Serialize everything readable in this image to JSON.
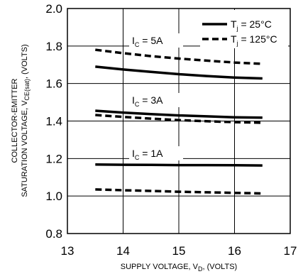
{
  "chart_data": {
    "type": "line",
    "xlabel": {
      "main": "SUPPLY VOLTAGE, V",
      "sub": "D",
      "tail": ", (VOLTS)"
    },
    "ylabel": {
      "line1": "COLLECTOR-EMITTER",
      "line2_main": "SATURATION VOLTAGE, V",
      "line2_sub": "CE(sat)",
      "line2_tail": ", (VOLTS)"
    },
    "xlim": [
      13,
      17
    ],
    "ylim": [
      0.8,
      2.0
    ],
    "xticks": [
      "13",
      "14",
      "15",
      "16",
      "17"
    ],
    "yticks": [
      "0.8",
      "1.0",
      "1.2",
      "1.4",
      "1.6",
      "1.8",
      "2.0"
    ],
    "grid": true,
    "legend_position": "top-right",
    "legend": [
      {
        "main": "T",
        "sub": "j",
        "tail": " = 25°C",
        "style": "solid"
      },
      {
        "main": "T",
        "sub": "j",
        "tail": " = 125°C",
        "style": "dashed"
      }
    ],
    "annotations": [
      {
        "main": "I",
        "sub": "C",
        "tail": " = 5A"
      },
      {
        "main": "I",
        "sub": "C",
        "tail": " = 3A"
      },
      {
        "main": "I",
        "sub": "C",
        "tail": " = 1A"
      }
    ],
    "series": [
      {
        "style": "solid",
        "current": "5A",
        "x": [
          13.5,
          14,
          14.5,
          15,
          15.5,
          16,
          16.5
        ],
        "y": [
          1.69,
          1.675,
          1.662,
          1.65,
          1.64,
          1.632,
          1.627
        ]
      },
      {
        "style": "dashed",
        "current": "5A",
        "x": [
          13.5,
          14,
          14.5,
          15,
          15.5,
          16,
          16.5
        ],
        "y": [
          1.78,
          1.762,
          1.746,
          1.733,
          1.722,
          1.712,
          1.705
        ]
      },
      {
        "style": "solid",
        "current": "3A",
        "x": [
          13.5,
          14,
          14.5,
          15,
          15.5,
          16,
          16.5
        ],
        "y": [
          1.455,
          1.445,
          1.437,
          1.43,
          1.425,
          1.42,
          1.418
        ]
      },
      {
        "style": "dashed",
        "current": "3A",
        "x": [
          13.5,
          14,
          14.5,
          15,
          15.5,
          16,
          16.5
        ],
        "y": [
          1.432,
          1.422,
          1.413,
          1.405,
          1.399,
          1.394,
          1.391
        ]
      },
      {
        "style": "solid",
        "current": "1A",
        "x": [
          13.5,
          14,
          14.5,
          15,
          15.5,
          16,
          16.5
        ],
        "y": [
          1.168,
          1.167,
          1.166,
          1.165,
          1.165,
          1.164,
          1.163
        ]
      },
      {
        "style": "dashed",
        "current": "1A",
        "x": [
          13.5,
          14,
          14.5,
          15,
          15.5,
          16,
          16.5
        ],
        "y": [
          1.035,
          1.031,
          1.027,
          1.023,
          1.02,
          1.017,
          1.014
        ]
      }
    ]
  }
}
